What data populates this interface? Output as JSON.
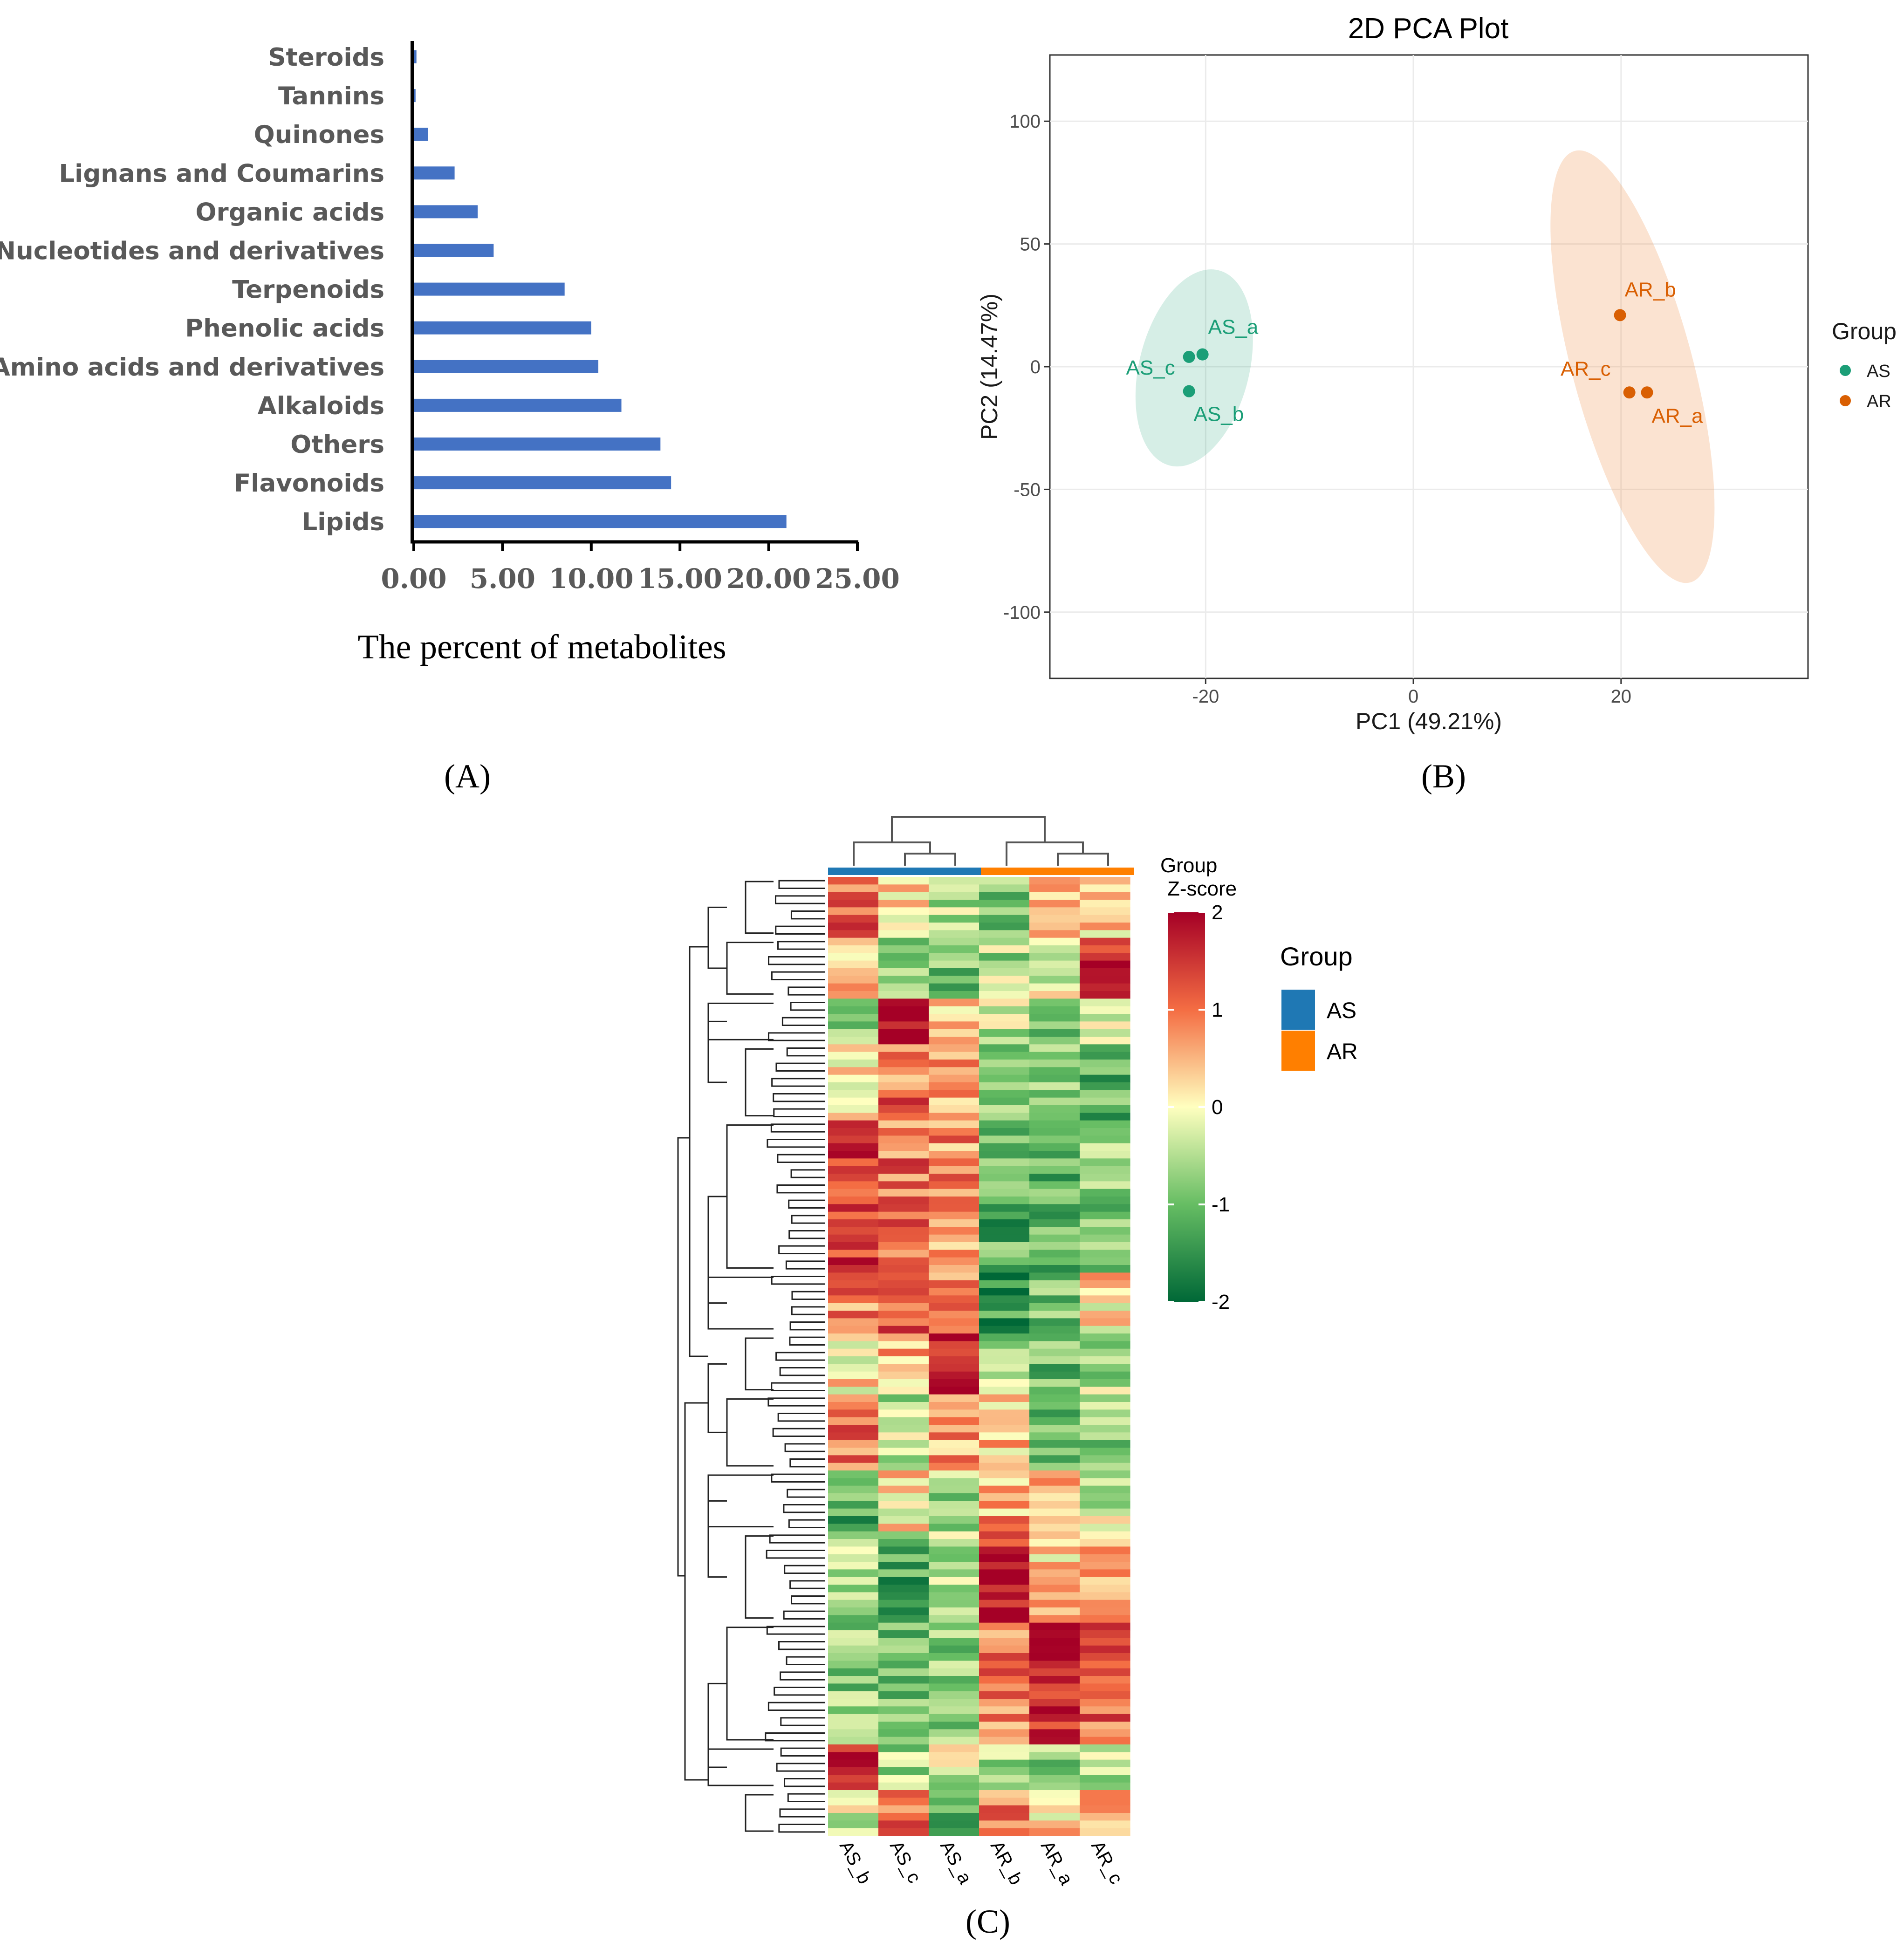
{
  "panel_labels": {
    "a": "(A)",
    "b": "(B)",
    "c": "(C)"
  },
  "colors": {
    "bar": "#4472c4",
    "as_pca": "#1b9e77",
    "ar_pca": "#d95f02",
    "as_group": "#1f78b4",
    "ar_group": "#ff7f00",
    "heat_low": "#006837",
    "heat_mid": "#ffffbf",
    "heat_high": "#a50026"
  },
  "chart_data": [
    {
      "type": "bar",
      "orientation": "horizontal",
      "title": "",
      "xlabel": "The percent of metabolites",
      "ylabel": "",
      "categories": [
        "Steroids",
        "Tannins",
        "Quinones",
        "Lignans and Coumarins",
        "Organic acids",
        "Nucleotides and derivatives",
        "Terpenoids",
        "Phenolic acids",
        "Amino acids and derivatives",
        "Alkaloids",
        "Others",
        "Flavonoids",
        "Lipids"
      ],
      "values": [
        0.15,
        0.1,
        0.8,
        2.3,
        3.6,
        4.5,
        8.5,
        10.0,
        10.4,
        11.7,
        13.9,
        14.5,
        21.0
      ],
      "xlim": [
        0,
        25
      ],
      "xticks": [
        "0.00",
        "5.00",
        "10.00",
        "15.00",
        "20.00",
        "25.00"
      ]
    },
    {
      "type": "scatter",
      "title": "2D PCA Plot",
      "xlabel": "PC1 (49.21%)",
      "ylabel": "PC2 (14.47%)",
      "xlim": [
        -35,
        38
      ],
      "ylim": [
        -127,
        127
      ],
      "xticks": [
        -20,
        0,
        20
      ],
      "yticks": [
        100,
        50,
        0,
        -50,
        -100
      ],
      "legend_title": "Group",
      "legend_position": "right",
      "series": [
        {
          "name": "AS",
          "points": [
            {
              "label": "AS_a",
              "x": -20.3,
              "y": 5
            },
            {
              "label": "AS_b",
              "x": -21.6,
              "y": -10
            },
            {
              "label": "AS_c",
              "x": -21.6,
              "y": 4
            }
          ]
        },
        {
          "name": "AR",
          "points": [
            {
              "label": "AR_a",
              "x": 22.5,
              "y": -10.5
            },
            {
              "label": "AR_b",
              "x": 19.9,
              "y": 21
            },
            {
              "label": "AR_c",
              "x": 20.8,
              "y": -10.5
            }
          ]
        }
      ]
    },
    {
      "type": "heatmap",
      "columns": [
        "AS_b",
        "AS_c",
        "AS_a",
        "AR_b",
        "AR_a",
        "AR_c"
      ],
      "column_groups": [
        "AS",
        "AS",
        "AS",
        "AR",
        "AR",
        "AR"
      ],
      "group_annotation_title": "Group",
      "legend_title": "Z-score",
      "legend_ticks": [
        2,
        1,
        0,
        -1,
        -2
      ],
      "zlim": [
        -2,
        2
      ],
      "group_legend_title": "Group",
      "group_legend": [
        "AS",
        "AR"
      ],
      "row_blocks": [
        {
          "rows": 8,
          "values": [
            1.0,
            0.2,
            -0.5,
            -1.0,
            0.5,
            0.3
          ]
        },
        {
          "rows": 8,
          "values": [
            0.3,
            -0.6,
            -0.8,
            -0.5,
            -0.3,
            1.8
          ]
        },
        {
          "rows": 6,
          "values": [
            -0.5,
            1.8,
            0.5,
            -0.3,
            -1.0,
            -0.5
          ]
        },
        {
          "rows": 10,
          "values": [
            0.2,
            1.0,
            0.5,
            -0.8,
            -0.6,
            -1.2
          ]
        },
        {
          "rows": 20,
          "values": [
            1.3,
            1.0,
            0.8,
            -1.2,
            -1.0,
            -0.8
          ]
        },
        {
          "rows": 8,
          "values": [
            0.8,
            1.2,
            0.6,
            -1.5,
            -0.8,
            0.2
          ]
        },
        {
          "rows": 8,
          "values": [
            0.2,
            0.5,
            1.9,
            -0.6,
            -0.9,
            -0.5
          ]
        },
        {
          "rows": 10,
          "values": [
            0.9,
            -0.5,
            0.6,
            0.5,
            -1.0,
            -0.7
          ]
        },
        {
          "rows": 8,
          "values": [
            -1.2,
            0.2,
            -0.5,
            0.6,
            0.3,
            -0.2
          ]
        },
        {
          "rows": 12,
          "values": [
            -0.5,
            -1.2,
            -0.5,
            1.7,
            0.3,
            0.5
          ]
        },
        {
          "rows": 16,
          "values": [
            -0.8,
            -0.8,
            -0.9,
            0.9,
            1.7,
            1.0
          ]
        },
        {
          "rows": 6,
          "values": [
            1.7,
            -0.5,
            -0.3,
            -0.4,
            -0.6,
            -0.5
          ]
        },
        {
          "rows": 6,
          "values": [
            -0.2,
            1.0,
            -0.9,
            0.8,
            0.3,
            0.8
          ]
        }
      ]
    }
  ]
}
